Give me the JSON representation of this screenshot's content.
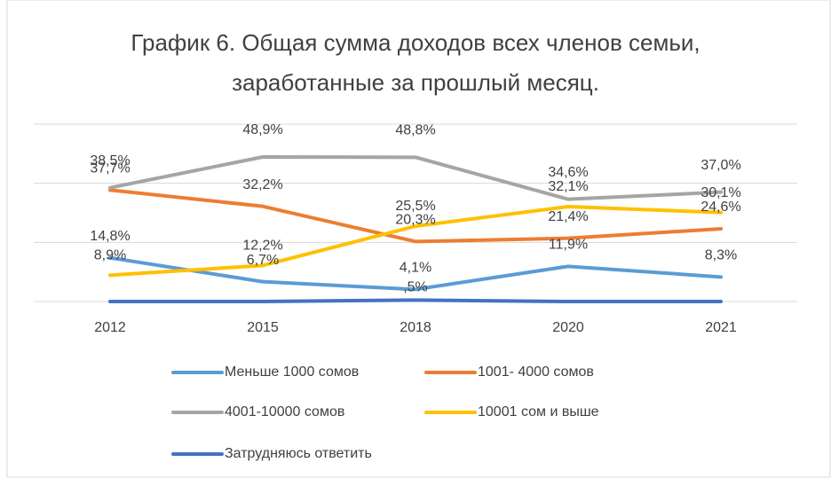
{
  "chart_data": {
    "type": "line",
    "title": [
      "График 6. Общая сумма доходов всех членов семьи,",
      "заработанные за прошлый месяц."
    ],
    "categories": [
      "2012",
      "2015",
      "2018",
      "2020",
      "2021"
    ],
    "ylim": [
      0,
      60
    ],
    "yticks": [
      0,
      20,
      40,
      60
    ],
    "grid": true,
    "series": [
      {
        "name": "Меньше 1000 сомов",
        "color": "#5B9BD5",
        "values": [
          14.8,
          6.7,
          4.1,
          11.9,
          8.3
        ],
        "value_labels": [
          "14,8%",
          "6,7%",
          "4,1%",
          "11,9%",
          "8,3%"
        ]
      },
      {
        "name": "1001- 4000 сомов",
        "color": "#ED7D31",
        "values": [
          37.7,
          32.2,
          20.3,
          21.4,
          24.6
        ],
        "value_labels": [
          "37,7%",
          "32,2%",
          "20,3%",
          "21,4%",
          "24,6%"
        ]
      },
      {
        "name": "4001-10000 сомов",
        "color": "#A5A5A5",
        "values": [
          38.5,
          48.9,
          48.8,
          34.6,
          37.0
        ],
        "value_labels": [
          "38,5%",
          "48,9%",
          "48,8%",
          "34,6%",
          "37,0%"
        ]
      },
      {
        "name": "10001 сом и выше",
        "color": "#FFC000",
        "values": [
          8.9,
          12.2,
          25.5,
          32.1,
          30.1
        ],
        "value_labels": [
          "8,9%",
          "12,2%",
          "25,5%",
          "32,1%",
          "30,1%"
        ]
      },
      {
        "name": "Затрудняюсь ответить",
        "color": "#4472C4",
        "values": [
          0,
          0,
          0.5,
          0,
          0
        ],
        "value_labels": [
          null,
          null,
          ",5%",
          null,
          null
        ]
      }
    ]
  }
}
